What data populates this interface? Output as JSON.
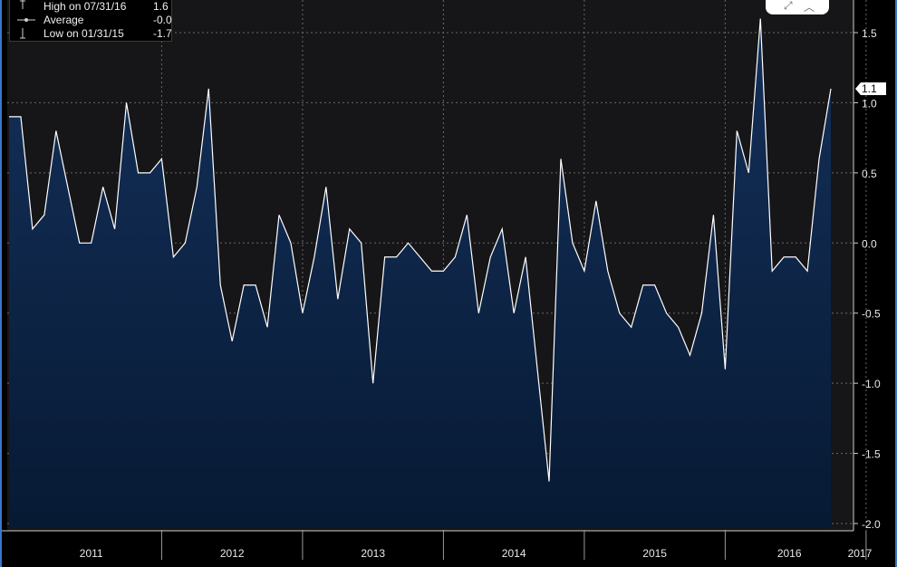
{
  "legend": {
    "high": {
      "label": "High on 07/31/16",
      "value": "1.6"
    },
    "average": {
      "label": "Average",
      "value": "-0.0"
    },
    "low": {
      "label": "Low on 01/31/15",
      "value": "-1.7"
    }
  },
  "controls": {
    "expand_icon": "expand-icon",
    "collapse_icon": "chevron-up-icon"
  },
  "colors": {
    "background": "#000000",
    "plot_background": "#161517",
    "line": "#ffffff",
    "fill_top": "#14305a",
    "fill_bottom": "#071a34",
    "grid": "#6a6a6a",
    "text": "#e8e8e8",
    "accent": "#3b77c9"
  },
  "chart_data": {
    "type": "area",
    "x_label_years": [
      "2011",
      "2012",
      "2013",
      "2014",
      "2015",
      "2016",
      "2017"
    ],
    "y_ticks": [
      "1.5",
      "1.0",
      "0.5",
      "0.0",
      "-0.5",
      "-1.0",
      "-1.5",
      "-2.0"
    ],
    "ylim": [
      -2.0,
      1.7
    ],
    "last_value_label": "1.1",
    "x_start": "2010-12",
    "x_end": "2017-02",
    "series": [
      {
        "values": [
          0.9,
          0.9,
          0.1,
          0.2,
          0.8,
          0.4,
          0.0,
          0.0,
          0.4,
          0.1,
          1.0,
          0.5,
          0.5,
          0.6,
          -0.1,
          0.0,
          0.4,
          1.1,
          -0.3,
          -0.7,
          -0.3,
          -0.3,
          -0.6,
          0.2,
          0.0,
          -0.5,
          -0.1,
          0.4,
          -0.4,
          0.1,
          0.0,
          -1.0,
          -0.1,
          -0.1,
          0.0,
          -0.1,
          -0.2,
          -0.2,
          -0.1,
          0.2,
          -0.5,
          -0.1,
          0.1,
          -0.5,
          -0.1,
          -0.9,
          -1.7,
          0.6,
          0.0,
          -0.2,
          0.3,
          -0.2,
          -0.5,
          -0.6,
          -0.3,
          -0.3,
          -0.5,
          -0.6,
          -0.8,
          -0.5,
          0.2,
          -0.9,
          0.8,
          0.5,
          1.6,
          -0.2,
          -0.1,
          -0.1,
          -0.2,
          0.6,
          1.1
        ]
      }
    ]
  }
}
